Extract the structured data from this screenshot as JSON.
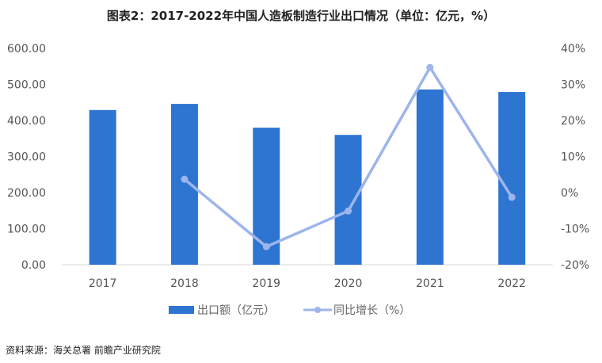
{
  "chart_data": {
    "type": "bar+line",
    "title": "图表2：2017-2022年中国人造板制造行业出口情况（单位：亿元，%）",
    "categories": [
      "2017",
      "2018",
      "2019",
      "2020",
      "2021",
      "2022"
    ],
    "series": [
      {
        "name": "出口额（亿元）",
        "type": "bar",
        "axis": "left",
        "values": [
          429,
          446,
          380,
          360,
          486,
          479
        ],
        "color": "#2E75D2"
      },
      {
        "name": "同比增长（%）",
        "type": "line",
        "axis": "right",
        "values": [
          null,
          3.7,
          -15.0,
          -5.1,
          34.7,
          -1.3
        ],
        "color": "#9DB5EC"
      }
    ],
    "y_left": {
      "range": [
        0,
        600
      ],
      "ticks": [
        "0.00",
        "100.00",
        "200.00",
        "300.00",
        "400.00",
        "500.00",
        "600.00"
      ]
    },
    "y_right": {
      "range": [
        -20,
        40
      ],
      "ticks": [
        "-20%",
        "-10%",
        "0%",
        "10%",
        "20%",
        "30%",
        "40%"
      ]
    },
    "grid": false,
    "legend_position": "bottom",
    "source": "资料来源：海关总署 前瞻产业研究院"
  }
}
